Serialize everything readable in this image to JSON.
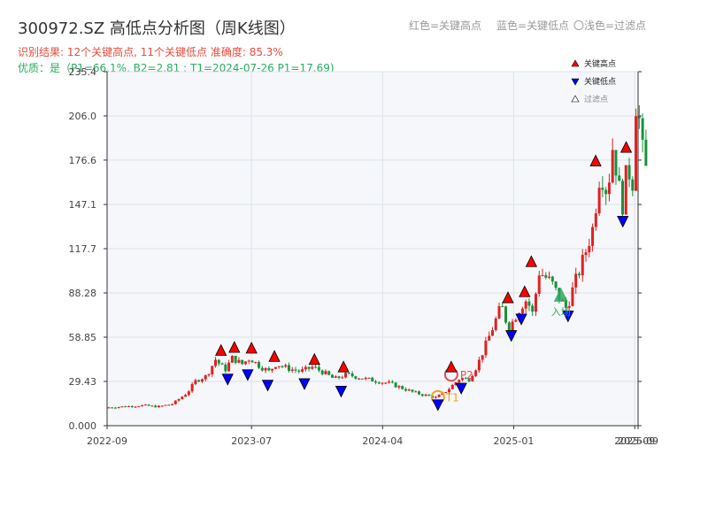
{
  "title": "300972.SZ 高低点分析图（周K线图）",
  "hints": {
    "red": "红色=关键高点",
    "blue": "蓝色=关键低点",
    "light": "〇浅色=过滤点"
  },
  "result_text": "识别结果: 12个关键高点, 11个关键低点  准确度: 85.3%",
  "quality_text": "优质：是（P1=66.1%, B2=2.81 ; T1=2024-07-26 P1=17.69)",
  "legend": [
    {
      "label": "关键高点",
      "color": "#ff0000",
      "shape": "up"
    },
    {
      "label": "关键低点",
      "color": "#0000ff",
      "shape": "down"
    },
    {
      "label": "过滤点",
      "color": "#ffffff",
      "shape": "up"
    }
  ],
  "colors": {
    "up": "#e02020",
    "down": "#17913a",
    "high": "#ff0000",
    "low": "#0000ff",
    "entry": "#2ea85f",
    "t1": "#f0a020",
    "p2": "#e05050",
    "plot_bg": "#f5f7fa",
    "grid": "#dde3ea"
  },
  "chart_data": {
    "type": "candlestick",
    "title": "300972.SZ 高低点分析图（周K线图）",
    "x_axis": {
      "range": [
        "2022-09-01",
        "2025-09-19"
      ],
      "tick_dates": [
        "2022-09-01",
        "2023-07-01",
        "2024-04-01",
        "2025-01-01",
        "2025-09-12",
        "2025-09-19"
      ],
      "tick_labels": [
        "2022-09",
        "2023-07",
        "2024-04",
        "2025-01",
        "2025-09",
        "2025-09"
      ]
    },
    "y_axis": {
      "range": [
        0,
        235.4
      ],
      "ticks": [
        0.0,
        29.43,
        58.85,
        88.28,
        117.7,
        147.1,
        176.6,
        206.0,
        235.4
      ],
      "tick_labels": [
        "0.000",
        "29.43",
        "58.85",
        "88.28",
        "117.7",
        "147.1",
        "176.6",
        "206.0",
        "235.4"
      ]
    },
    "price_path": [
      [
        "2022-09-01",
        12.0
      ],
      [
        "2022-10-15",
        12.8
      ],
      [
        "2022-11-20",
        13.5
      ],
      [
        "2022-12-20",
        12.6
      ],
      [
        "2023-01-20",
        14.5
      ],
      [
        "2023-02-20",
        22.0
      ],
      [
        "2023-03-10",
        30.0
      ],
      [
        "2023-04-01",
        33.0
      ],
      [
        "2023-04-20",
        44.0
      ],
      [
        "2023-05-10",
        37.0
      ],
      [
        "2023-05-25",
        45.0
      ],
      [
        "2023-06-15",
        41.0
      ],
      [
        "2023-07-01",
        45.0
      ],
      [
        "2023-07-20",
        40.0
      ],
      [
        "2023-08-10",
        36.0
      ],
      [
        "2023-08-25",
        41.0
      ],
      [
        "2023-09-20",
        38.0
      ],
      [
        "2023-10-15",
        36.0
      ],
      [
        "2023-11-10",
        39.0
      ],
      [
        "2023-12-05",
        35.0
      ],
      [
        "2023-12-25",
        31.0
      ],
      [
        "2024-01-20",
        34.0
      ],
      [
        "2024-03-01",
        31.0
      ],
      [
        "2024-04-20",
        28.0
      ],
      [
        "2024-06-10",
        22.0
      ],
      [
        "2024-07-26",
        18.5
      ],
      [
        "2024-08-20",
        24.0
      ],
      [
        "2024-09-15",
        32.0
      ],
      [
        "2024-10-01",
        30.0
      ],
      [
        "2024-10-20",
        40.0
      ],
      [
        "2024-11-20",
        64.0
      ],
      [
        "2024-12-10",
        80.0
      ],
      [
        "2024-12-25",
        64.0
      ],
      [
        "2025-01-20",
        80.0
      ],
      [
        "2025-02-01",
        84.0
      ],
      [
        "2025-02-15",
        73.0
      ],
      [
        "2025-02-25",
        103.0
      ],
      [
        "2025-03-25",
        95.0
      ],
      [
        "2025-04-10",
        85.0
      ],
      [
        "2025-04-25",
        78.0
      ],
      [
        "2025-05-10",
        92.0
      ],
      [
        "2025-05-30",
        110.0
      ],
      [
        "2025-06-20",
        132.0
      ],
      [
        "2025-07-05",
        170.0
      ],
      [
        "2025-07-20",
        155.0
      ],
      [
        "2025-08-01",
        188.0
      ],
      [
        "2025-08-10",
        165.0
      ],
      [
        "2025-08-20",
        145.0
      ],
      [
        "2025-09-01",
        175.0
      ],
      [
        "2025-09-10",
        155.0
      ],
      [
        "2025-09-19",
        222.0
      ],
      [
        "2025-09-26",
        200.0
      ],
      [
        "2025-10-06",
        170.0
      ]
    ],
    "key_highs": [
      {
        "date": "2023-04-28",
        "price": 45.0
      },
      {
        "date": "2023-05-26",
        "price": 47.0
      },
      {
        "date": "2023-07-01",
        "price": 46.5
      },
      {
        "date": "2023-08-18",
        "price": 41.0
      },
      {
        "date": "2023-11-10",
        "price": 39.0
      },
      {
        "date": "2024-01-10",
        "price": 34.0
      },
      {
        "date": "2024-08-23",
        "price": 34.0
      },
      {
        "date": "2024-12-20",
        "price": 80.0
      },
      {
        "date": "2025-01-24",
        "price": 84.0
      },
      {
        "date": "2025-02-07",
        "price": 104.0
      },
      {
        "date": "2025-06-22",
        "price": 171.0
      },
      {
        "date": "2025-08-25",
        "price": 180.0
      }
    ],
    "key_lows": [
      {
        "date": "2023-05-12",
        "price": 36.0
      },
      {
        "date": "2023-06-23",
        "price": 39.0
      },
      {
        "date": "2023-08-04",
        "price": 32.0
      },
      {
        "date": "2023-10-20",
        "price": 33.0
      },
      {
        "date": "2024-01-05",
        "price": 28.0
      },
      {
        "date": "2024-07-26",
        "price": 19.0
      },
      {
        "date": "2024-09-13",
        "price": 30.0
      },
      {
        "date": "2024-12-27",
        "price": 65.0
      },
      {
        "date": "2025-01-17",
        "price": 76.0
      },
      {
        "date": "2025-04-25",
        "price": 78.0
      },
      {
        "date": "2025-08-18",
        "price": 141.0
      }
    ],
    "annotations": [
      {
        "label": "T1",
        "date": "2024-07-26",
        "price": 19.0
      },
      {
        "label": "P2",
        "date": "2024-08-23",
        "price": 34.0
      },
      {
        "label": "入场",
        "date": "2025-04-10",
        "price": 86.0
      }
    ]
  }
}
